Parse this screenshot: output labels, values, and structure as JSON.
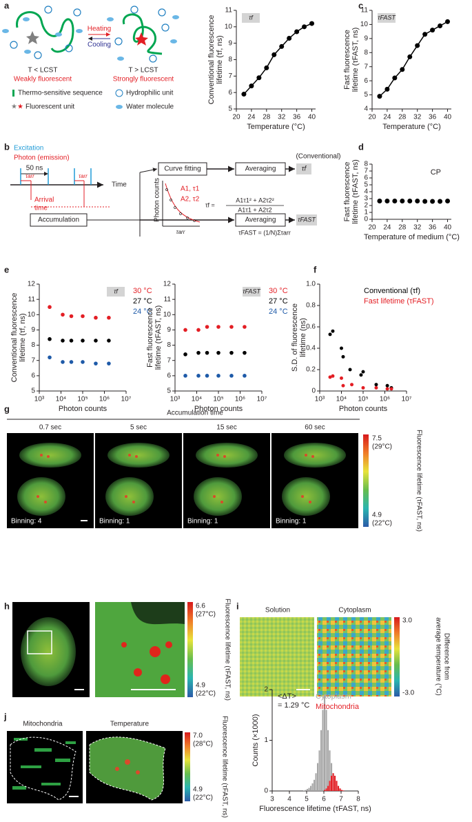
{
  "figure": {
    "panel_labels": [
      "a",
      "b",
      "c",
      "d",
      "e",
      "f",
      "g",
      "h",
      "i",
      "j"
    ],
    "a": {
      "heating": "Heating",
      "cooling": "Cooling",
      "left_state": "T < LCST",
      "right_state": "T > LCST",
      "left_desc": "Weakly fluorescent",
      "right_desc": "Strongly fluorescent",
      "legend": [
        "Thermo-sensitive sequence",
        "Hydrophilic unit",
        "Fluorescent unit",
        "Water molecule"
      ]
    },
    "b": {
      "excitation": "Excitation",
      "photon": "Photon (emission)",
      "interval": "50 ns",
      "time": "Time",
      "tarr": "τarr",
      "arrival": [
        "Arrival",
        "time"
      ],
      "accumulation": "Accumulation",
      "curve_fitting": "Curve fitting",
      "averaging": "Averaging",
      "conventional": "(Conventional)",
      "photon_counts": "Photon counts",
      "tau_f": "τf",
      "tau_fast": "τFAST",
      "components": [
        "A1, τ1",
        "A2, τ2"
      ],
      "fit_lhs": "τf =",
      "fit_num": "A1τ1² + A2τ2²",
      "fit_den": "A1τ1 + A2τ2",
      "fast_eq": "τFAST = (1/N)Στarr"
    },
    "g": {
      "title": "Accumulation time",
      "times": [
        "0.7 sec",
        "5 sec",
        "15 sec",
        "60 sec"
      ],
      "binning": [
        "Binning: 4",
        "Binning: 1",
        "Binning: 1",
        "Binning: 1"
      ],
      "colorbar_top": [
        "7.5",
        "(29°C)"
      ],
      "colorbar_bottom": [
        "4.9",
        "(22°C)"
      ],
      "colorbar_label": "Fluorescence lifetime (τFAST, ns)"
    },
    "h": {
      "colorbar_top": [
        "6.6",
        "(27°C)"
      ],
      "colorbar_bottom": [
        "4.9",
        "(22°C)"
      ],
      "colorbar_label": "Fluorescence lifetime (τFAST, ns)"
    },
    "i": {
      "titles": [
        "Solution",
        "Cytoplasm"
      ],
      "colorbar_top": "3.0",
      "colorbar_bottom": "-3.0",
      "colorbar_label": [
        "Difference from",
        "average temperature (°C)"
      ]
    },
    "j": {
      "titles": [
        "Mitochondria",
        "Temperature"
      ],
      "colorbar_top": [
        "7.0",
        "(28°C)"
      ],
      "colorbar_bottom": [
        "4.9",
        "(22°C)"
      ],
      "colorbar_label": "Fluorescence lifetime (τFAST, ns)"
    }
  },
  "chart_data": [
    {
      "type": "scatter",
      "label": "τf",
      "xlabel": "Temperature (°C)",
      "ylabel": [
        "Conventional fluorescence",
        "lifetime (τf, ns)"
      ],
      "xlim": [
        20,
        41
      ],
      "xticks": [
        20,
        24,
        28,
        32,
        36,
        40
      ],
      "ylim": [
        5,
        11
      ],
      "yticks": [
        5,
        6,
        7,
        8,
        9,
        10,
        11
      ],
      "x": [
        22,
        24,
        26,
        28,
        30,
        32,
        34,
        36,
        38,
        40
      ],
      "series": [
        {
          "color": "#000000",
          "line": true,
          "values": [
            5.9,
            6.4,
            6.9,
            7.5,
            8.3,
            8.8,
            9.3,
            9.7,
            10.0,
            10.2
          ]
        }
      ]
    },
    {
      "type": "scatter",
      "label": "τFAST",
      "xlabel": "Temperature (°C)",
      "ylabel": [
        "Fast fluorescence",
        "lifetime (τFAST, ns)"
      ],
      "xlim": [
        20,
        41
      ],
      "xticks": [
        20,
        24,
        28,
        32,
        36,
        40
      ],
      "ylim": [
        4,
        11
      ],
      "yticks": [
        4,
        5,
        6,
        7,
        8,
        9,
        10,
        11
      ],
      "x": [
        22,
        24,
        26,
        28,
        30,
        32,
        34,
        36,
        38,
        40
      ],
      "series": [
        {
          "color": "#000000",
          "line": true,
          "values": [
            4.9,
            5.4,
            6.2,
            6.8,
            7.7,
            8.5,
            9.3,
            9.6,
            9.9,
            10.2
          ]
        }
      ]
    },
    {
      "type": "scatter",
      "annotation": "CP",
      "xlabel": "Temperature of medium (°C)",
      "ylabel": [
        "Fast fluorescence",
        "lifetime (τFAST, ns)"
      ],
      "xlim": [
        20,
        41
      ],
      "xticks": [
        20,
        24,
        28,
        32,
        36,
        40
      ],
      "ylim": [
        0,
        8
      ],
      "yticks": [
        0,
        1,
        2,
        3,
        4,
        5,
        6,
        7,
        8
      ],
      "x": [
        22,
        24,
        26,
        28,
        30,
        32,
        34,
        36,
        38,
        40
      ],
      "series": [
        {
          "color": "#000000",
          "values": [
            2.65,
            2.65,
            2.65,
            2.65,
            2.65,
            2.65,
            2.6,
            2.6,
            2.6,
            2.65
          ]
        }
      ]
    },
    {
      "type": "scatter",
      "xscale": "log",
      "legend": "right",
      "label": "τf",
      "xlabel": "Photon counts",
      "ylabel": [
        "Conventional fluorescence",
        "lifetime (τf, ns)"
      ],
      "xlim": [
        1000,
        10000000
      ],
      "xticks": [
        {
          "value": 1000,
          "label": "10³"
        },
        {
          "value": 10000,
          "label": "10⁴"
        },
        {
          "value": 100000,
          "label": "10⁵"
        },
        {
          "value": 1000000,
          "label": "10⁶"
        },
        {
          "value": 10000000,
          "label": "10⁷"
        }
      ],
      "ylim": [
        5,
        12
      ],
      "yticks": [
        5,
        6,
        7,
        8,
        9,
        10,
        11,
        12
      ],
      "x": [
        3000,
        12000,
        30000,
        100000,
        400000,
        1600000
      ],
      "series": [
        {
          "name": "30 °C",
          "color": "#e31e24",
          "values": [
            10.5,
            10.0,
            9.9,
            9.9,
            9.8,
            9.8
          ]
        },
        {
          "name": "27 °C",
          "color": "#000000",
          "values": [
            8.4,
            8.3,
            8.3,
            8.3,
            8.3,
            8.3
          ]
        },
        {
          "name": "24 °C",
          "color": "#1e5aa8",
          "values": [
            7.2,
            6.9,
            6.9,
            6.9,
            6.8,
            6.8
          ]
        }
      ]
    },
    {
      "type": "scatter",
      "xscale": "log",
      "legend": "right",
      "label": "τFAST",
      "xlabel": "Photon counts",
      "ylabel": [
        "Fast fluorescence",
        "lifetime (τFAST, ns)"
      ],
      "xlim": [
        1000,
        10000000
      ],
      "xticks": [
        {
          "value": 1000,
          "label": "10³"
        },
        {
          "value": 10000,
          "label": "10⁴"
        },
        {
          "value": 100000,
          "label": "10⁵"
        },
        {
          "value": 1000000,
          "label": "10⁶"
        },
        {
          "value": 10000000,
          "label": "10⁷"
        }
      ],
      "ylim": [
        5,
        12
      ],
      "yticks": [
        5,
        6,
        7,
        8,
        9,
        10,
        11,
        12
      ],
      "x": [
        3000,
        12000,
        30000,
        100000,
        400000,
        1600000
      ],
      "series": [
        {
          "name": "30 °C",
          "color": "#e31e24",
          "values": [
            9.0,
            9.0,
            9.2,
            9.2,
            9.2,
            9.2
          ]
        },
        {
          "name": "27 °C",
          "color": "#000000",
          "values": [
            7.4,
            7.5,
            7.5,
            7.5,
            7.5,
            7.5
          ]
        },
        {
          "name": "24 °C",
          "color": "#1e5aa8",
          "values": [
            6.0,
            6.0,
            6.0,
            6.0,
            6.0,
            6.0
          ]
        }
      ]
    },
    {
      "type": "scatter",
      "xscale": "log",
      "legend": "upper right",
      "xlabel": "Photon counts",
      "ylabel": [
        "S.D. of fluorescence",
        "lifetime (ns)"
      ],
      "xlim": [
        1000,
        10000000
      ],
      "xticks": [
        {
          "value": 1000,
          "label": "10³"
        },
        {
          "value": 10000,
          "label": "10⁴"
        },
        {
          "value": 100000,
          "label": "10⁵"
        },
        {
          "value": 1000000,
          "label": "10⁶"
        },
        {
          "value": 10000000,
          "label": "10⁷"
        }
      ],
      "ylim": [
        0,
        1
      ],
      "yticks": [
        0,
        0.2,
        0.4,
        0.6,
        0.8,
        {
          "value": 1,
          "label": "1.0"
        }
      ],
      "series": [
        {
          "name": "Conventional (τf)",
          "color": "#000000",
          "x": [
            3000,
            4000,
            10000,
            12000,
            25000,
            80000,
            100000,
            400000,
            1300000,
            2000000
          ],
          "values": [
            0.53,
            0.56,
            0.4,
            0.32,
            0.2,
            0.15,
            0.18,
            0.06,
            0.05,
            0.03
          ]
        },
        {
          "name": "Fast lifetime (τFAST)",
          "color": "#e31e24",
          "x": [
            3000,
            4000,
            10000,
            12000,
            30000,
            100000,
            400000,
            1300000,
            2000000
          ],
          "values": [
            0.13,
            0.14,
            0.12,
            0.05,
            0.06,
            0.03,
            0.03,
            0.02,
            0.02
          ]
        }
      ]
    },
    {
      "type": "histogram",
      "legend": "upper right",
      "annotation": [
        "<ΔT>",
        "= 1.29 °C"
      ],
      "xlabel": "Fluorescence lifetime (τFAST, ns)",
      "ylabel": [
        "Counts (×1000)"
      ],
      "xlim": [
        3,
        8
      ],
      "xticks": [
        3,
        4,
        5,
        6,
        7,
        8
      ],
      "ylim": [
        0,
        2
      ],
      "yticks": [
        0,
        1,
        2
      ],
      "bins": [
        4.8,
        4.9,
        5.0,
        5.1,
        5.2,
        5.3,
        5.4,
        5.5,
        5.6,
        5.7,
        5.8,
        5.9,
        6.0,
        6.1,
        6.2,
        6.3,
        6.4,
        6.5,
        6.6,
        6.7,
        6.8,
        6.9,
        7.0,
        7.1,
        7.2
      ],
      "series": [
        {
          "name": "Cytoplasm",
          "color": "#a6a6a6",
          "values": [
            0.01,
            0.02,
            0.04,
            0.06,
            0.1,
            0.15,
            0.22,
            0.35,
            0.55,
            0.8,
            1.2,
            1.6,
            1.9,
            1.6,
            1.2,
            0.8,
            0.55,
            0.35,
            0.2,
            0.12,
            0.06,
            0.03,
            0.01,
            0
          ]
        },
        {
          "name": "Mitochondria",
          "color": "#e31e24",
          "values": [
            0,
            0,
            0,
            0,
            0,
            0,
            0,
            0,
            0,
            0,
            0,
            0,
            0.02,
            0.05,
            0.1,
            0.2,
            0.3,
            0.35,
            0.3,
            0.2,
            0.1,
            0.05,
            0.02,
            0.01
          ]
        }
      ]
    }
  ]
}
